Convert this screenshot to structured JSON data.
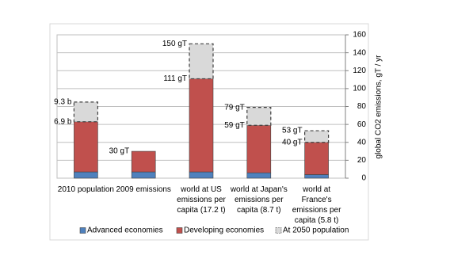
{
  "chart_data": {
    "type": "stacked_bar",
    "y_axis_label": "global CO2 emissions,  gT / yr",
    "categories": [
      "2010 population",
      "2009 emissions",
      "world at US emissions per capita (17.2 t)",
      "world at Japan's emissions per capita (8.7 t)",
      "world at France's emissions per capita (5.8 t)"
    ],
    "series": [
      {
        "name": "Advanced economies",
        "color": "#4f81bd",
        "values": [
          7,
          7,
          7,
          6,
          4
        ]
      },
      {
        "name": "Developing economies",
        "color": "#c0504d",
        "values": [
          56,
          23,
          104,
          53,
          36
        ],
        "total_labels": [
          "6.9 b",
          "30 gT",
          "111 gT",
          "59 gT",
          "40 gT"
        ]
      },
      {
        "name": "At 2050 population",
        "color": "#d9d9d9",
        "dashed": true,
        "values": [
          22,
          null,
          39,
          20,
          13
        ],
        "total_labels": [
          "9.3 b",
          null,
          "150 gT",
          "79 gT",
          "53 gT"
        ]
      }
    ],
    "ylim": [
      0,
      160
    ],
    "yticks": [
      0,
      20,
      40,
      60,
      80,
      100,
      120,
      140,
      160
    ],
    "y_axis_side": "right",
    "grid": true,
    "legend": "bottom"
  }
}
